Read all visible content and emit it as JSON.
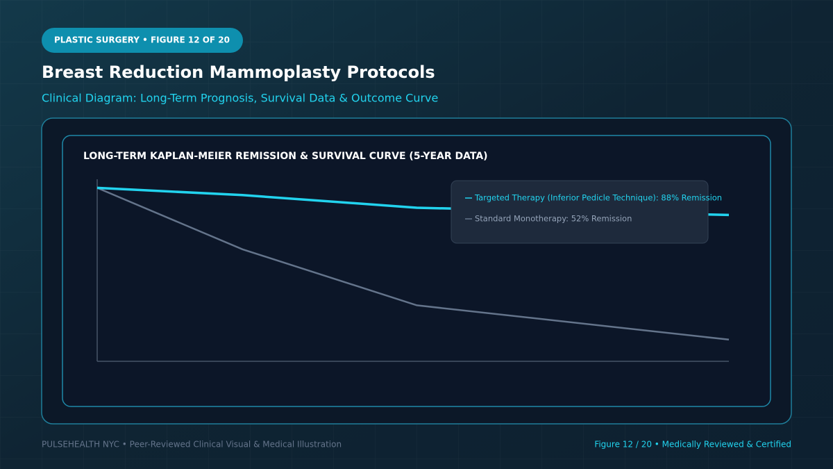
{
  "header": {
    "badge": "PLASTIC SURGERY • FIGURE 12 OF 20",
    "title": "Breast Reduction Mammoplasty Protocols",
    "subtitle": "Clinical Diagram: Long-Term Prognosis, Survival Data & Outcome Curve"
  },
  "chart_data": {
    "type": "line",
    "title": "LONG-TERM KAPLAN-MEIER REMISSION & SURVIVAL CURVE (5-YEAR DATA)",
    "x": [
      0,
      1.15,
      2.53,
      5
    ],
    "xlim": [
      0,
      5
    ],
    "ylim": [
      0,
      100
    ],
    "series": [
      {
        "name": "Targeted Therapy (Inferior Pedicle Technique): 88% Remission",
        "color": "#22d3ee",
        "values": [
          96,
          92,
          85,
          81
        ]
      },
      {
        "name": "Standard Monotherapy: 52% Remission",
        "color": "#64748b",
        "values": [
          96,
          62,
          31,
          12
        ]
      }
    ]
  },
  "footer": {
    "left": "PULSEHEALTH NYC • Peer-Reviewed Clinical Visual & Medical Illustration",
    "right": "Figure 12 / 20 • Medically Reviewed & Certified"
  }
}
